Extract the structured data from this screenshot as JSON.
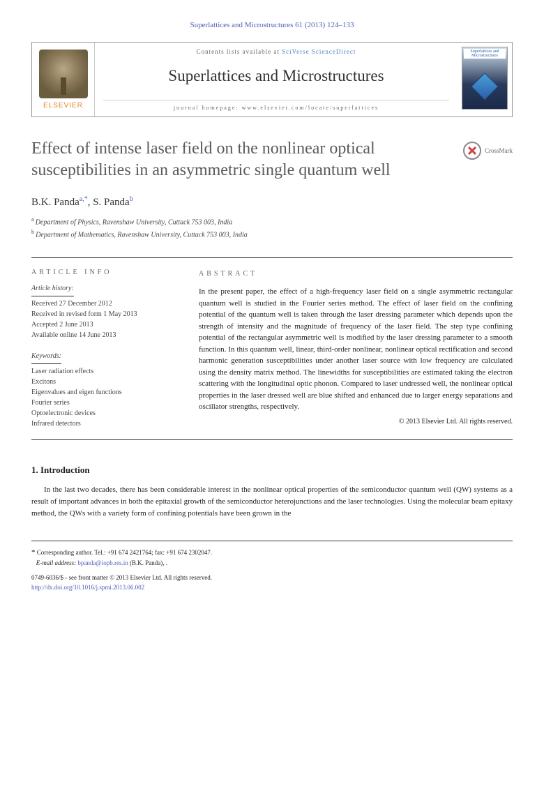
{
  "journal_ref": "Superlattices and Microstructures 61 (2013) 124–133",
  "header": {
    "contents_prefix": "Contents lists available at",
    "contents_link": "SciVerse ScienceDirect",
    "journal_name": "Superlattices and Microstructures",
    "homepage_label": "journal homepage: www.elsevier.com/locate/superlattices",
    "publisher": "ELSEVIER",
    "cover_title": "Superlattices and Microstructures"
  },
  "crossmark": "CrossMark",
  "title": "Effect of intense laser field on the nonlinear optical susceptibilities in an asymmetric single quantum well",
  "authors_html": "B.K. Panda",
  "author1_sup": "a,*",
  "author2": "S. Panda",
  "author2_sup": "b",
  "affiliations": {
    "a": "Department of Physics, Ravenshaw University, Cuttack 753 003, India",
    "b": "Department of Mathematics, Ravenshaw University, Cuttack 753 003, India"
  },
  "info_heading": "ARTICLE INFO",
  "abstract_heading": "ABSTRACT",
  "history": {
    "heading": "Article history:",
    "received": "Received 27 December 2012",
    "revised": "Received in revised form 1 May 2013",
    "accepted": "Accepted 2 June 2013",
    "online": "Available online 14 June 2013"
  },
  "keywords": {
    "heading": "Keywords:",
    "items": [
      "Laser radiation effects",
      "Excitons",
      "Eigenvalues and eigen functions",
      "Fourier series",
      "Optoelectronic devices",
      "Infrared detectors"
    ]
  },
  "abstract_text": "In the present paper, the effect of a high-frequency laser field on a single asymmetric rectangular quantum well is studied in the Fourier series method. The effect of laser field on the confining potential of the quantum well is taken through the laser dressing parameter which depends upon the strength of intensity and the magnitude of frequency of the laser field. The step type confining potential of the rectangular asymmetric well is modified by the laser dressing parameter to a smooth function. In this quantum well, linear, third-order nonlinear, nonlinear optical rectification and second harmonic generation susceptibilities under another laser source with low frequency are calculated using the density matrix method. The linewidths for susceptibilities are estimated taking the electron scattering with the longitudinal optic phonon. Compared to laser undressed well, the nonlinear optical properties in the laser dressed well are blue shifted and enhanced due to larger energy separations and oscillator strengths, respectively.",
  "abstract_copyright": "© 2013 Elsevier Ltd. All rights reserved.",
  "section1_heading": "1. Introduction",
  "body_p1": "In the last two decades, there has been considerable interest in the nonlinear optical properties of the semiconductor quantum well (QW) systems as a result of important advances in both the epitaxial growth of the semiconductor heterojunctions and the laser technologies. Using the molecular beam epitaxy method, the QWs with a variety form of confining potentials have been grown in the",
  "footer": {
    "corresponding": "Corresponding author. Tel.: +91 674 2421764; fax: +91 674 2302047.",
    "email_label": "E-mail address:",
    "email": "bpanda@iopb.res.in",
    "email_author": "(B.K. Panda), .",
    "issn_line": "0749-6036/$ - see front matter © 2013 Elsevier Ltd. All rights reserved.",
    "doi": "http://dx.doi.org/10.1016/j.spmi.2013.06.002"
  },
  "colors": {
    "link_blue": "#4a5fb5",
    "orange": "#e67e22",
    "title_gray": "#5a5a5a"
  }
}
